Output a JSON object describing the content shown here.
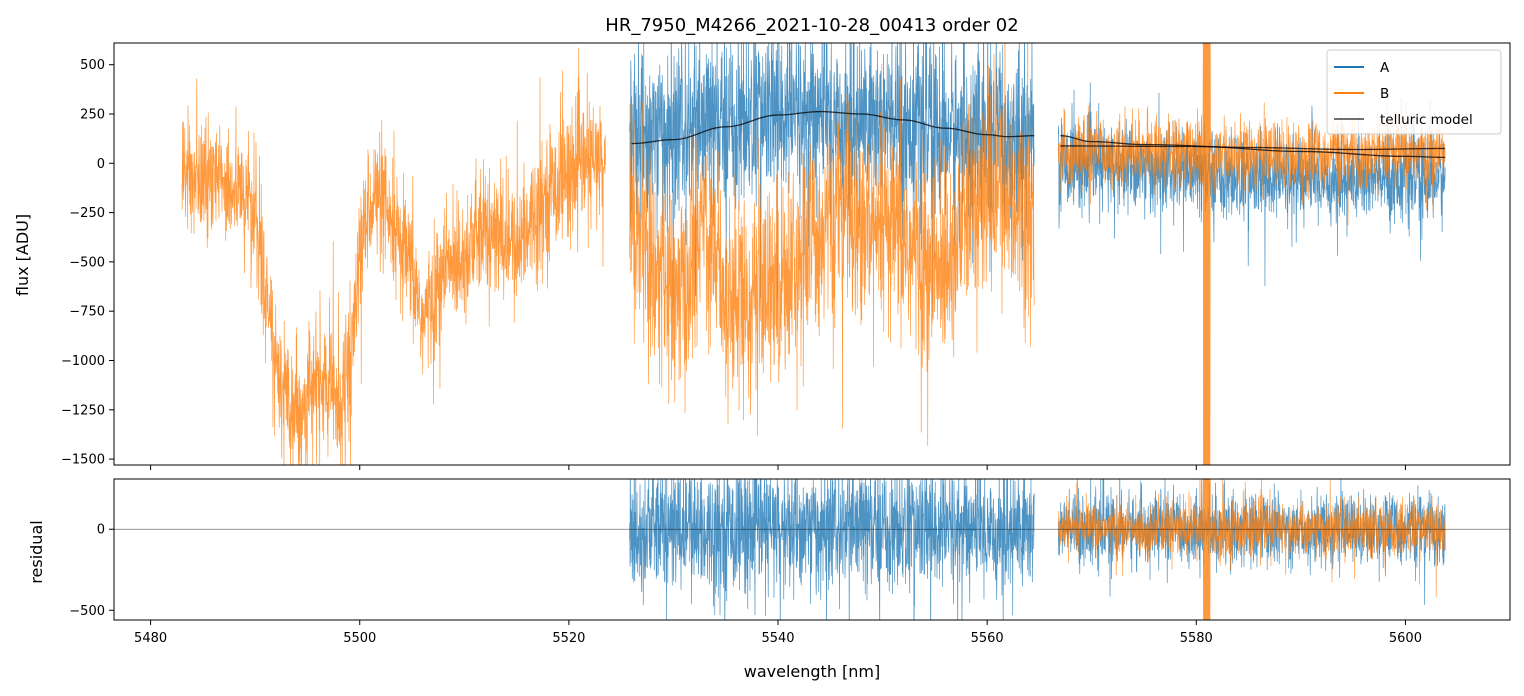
{
  "chart_data": {
    "type": "line",
    "title": "HR_7950_M4266_2021-10-28_00413  order 02",
    "colors": {
      "A": "#1f77b4",
      "B": "#ff7f0e",
      "model": "#000000"
    },
    "top_panel": {
      "ylabel": "flux [ADU]",
      "ylim": [
        -1530,
        610
      ],
      "yticks": [
        500,
        250,
        0,
        -250,
        -500,
        -750,
        -1000,
        -1250,
        -1500
      ],
      "ytick_labels": [
        "500",
        "250",
        "0",
        "−250",
        "−500",
        "−750",
        "−1000",
        "−1250",
        "−1500"
      ],
      "legend": {
        "placement": "top-right",
        "entries": [
          "A",
          "B",
          "telluric model"
        ]
      },
      "series": [
        {
          "name": "B",
          "segment": "left",
          "xrange": [
            5483,
            5523.5
          ],
          "noise_sd": 160,
          "envelope": [
            [
              5483,
              -50
            ],
            [
              5485,
              -80
            ],
            [
              5487,
              -100
            ],
            [
              5489,
              -160
            ],
            [
              5490,
              -250
            ],
            [
              5491,
              -650
            ],
            [
              5492,
              -1000
            ],
            [
              5493,
              -1150
            ],
            [
              5494,
              -1250
            ],
            [
              5495,
              -1200
            ],
            [
              5496,
              -1100
            ],
            [
              5497,
              -1150
            ],
            [
              5498,
              -1200
            ],
            [
              5499,
              -1050
            ],
            [
              5500,
              -500
            ],
            [
              5501,
              -150
            ],
            [
              5502,
              -200
            ],
            [
              5503,
              -350
            ],
            [
              5504,
              -450
            ],
            [
              5505,
              -550
            ],
            [
              5506,
              -800
            ],
            [
              5507,
              -700
            ],
            [
              5508,
              -550
            ],
            [
              5509,
              -500
            ],
            [
              5510,
              -450
            ],
            [
              5512,
              -350
            ],
            [
              5514,
              -400
            ],
            [
              5515,
              -450
            ],
            [
              5516,
              -300
            ],
            [
              5518,
              -150
            ],
            [
              5520,
              -50
            ],
            [
              5522,
              0
            ],
            [
              5523.5,
              0
            ]
          ]
        },
        {
          "name": "A",
          "segment": "mid",
          "xrange": [
            5525.8,
            5564.5
          ],
          "noise_sd": 230,
          "envelope": [
            [
              5525.8,
              150
            ],
            [
              5531,
              150
            ],
            [
              5540,
              260
            ],
            [
              5548,
              230
            ],
            [
              5556,
              150
            ],
            [
              5564.5,
              140
            ]
          ]
        },
        {
          "name": "B",
          "segment": "mid",
          "xrange": [
            5525.8,
            5564.5
          ],
          "noise_sd": 260,
          "envelope": [
            [
              5525.8,
              -200
            ],
            [
              5527,
              -400
            ],
            [
              5529,
              -600
            ],
            [
              5531,
              -700
            ],
            [
              5533,
              -250
            ],
            [
              5535,
              -650
            ],
            [
              5537,
              -700
            ],
            [
              5539,
              -650
            ],
            [
              5541,
              -550
            ],
            [
              5543,
              -400
            ],
            [
              5545,
              -300
            ],
            [
              5547,
              -200
            ],
            [
              5549,
              -400
            ],
            [
              5551,
              -350
            ],
            [
              5553,
              -450
            ],
            [
              5555,
              -600
            ],
            [
              5557,
              -350
            ],
            [
              5559,
              -200
            ],
            [
              5561,
              -150
            ],
            [
              5563,
              -200
            ],
            [
              5564.5,
              -250
            ]
          ]
        },
        {
          "name": "A",
          "segment": "right",
          "xrange": [
            5566.8,
            5603.8
          ],
          "noise_sd": 110,
          "envelope": [
            [
              5566.8,
              0
            ],
            [
              5575,
              -30
            ],
            [
              5585,
              -80
            ],
            [
              5595,
              -80
            ],
            [
              5603.8,
              -80
            ]
          ]
        },
        {
          "name": "B",
          "segment": "right",
          "xrange": [
            5566.8,
            5603.8
          ],
          "noise_sd": 85,
          "envelope": [
            [
              5566.8,
              50
            ],
            [
              5580,
              60
            ],
            [
              5590,
              40
            ],
            [
              5603.8,
              50
            ]
          ],
          "spike": {
            "x": 5581,
            "low": -1530,
            "high": 610
          }
        },
        {
          "name": "telluric model",
          "segment": "mid-curve",
          "points": [
            [
              5526,
              100
            ],
            [
              5530,
              120
            ],
            [
              5535,
              185
            ],
            [
              5540,
              245
            ],
            [
              5544,
              262
            ],
            [
              5548,
              250
            ],
            [
              5552,
              220
            ],
            [
              5556,
              178
            ],
            [
              5560,
              145
            ],
            [
              5562,
              135
            ],
            [
              5564.5,
              140
            ]
          ]
        },
        {
          "name": "telluric model",
          "segment": "right-curve-1",
          "points": [
            [
              5567,
              140
            ],
            [
              5570,
              110
            ],
            [
              5575,
              95
            ],
            [
              5585,
              80
            ],
            [
              5595,
              70
            ],
            [
              5603.8,
              75
            ]
          ]
        },
        {
          "name": "telluric model",
          "segment": "right-curve-2",
          "points": [
            [
              5567,
              88
            ],
            [
              5580,
              85
            ],
            [
              5590,
              60
            ],
            [
              5600,
              35
            ],
            [
              5603.8,
              30
            ]
          ]
        }
      ]
    },
    "bottom_panel": {
      "ylabel": "residual",
      "ylim": [
        -560,
        310
      ],
      "yticks": [
        0,
        -500
      ],
      "ytick_labels": [
        "0",
        "−500"
      ],
      "zero_line": 0,
      "series": [
        {
          "name": "A",
          "xrange": [
            5525.8,
            5564.5
          ],
          "noise_sd": 200
        },
        {
          "name": "A",
          "xrange": [
            5566.8,
            5603.8
          ],
          "noise_sd": 110
        },
        {
          "name": "B",
          "xrange": [
            5566.8,
            5603.8
          ],
          "noise_sd": 85,
          "spike": {
            "x": 5581,
            "low": -560,
            "high": 310
          }
        }
      ]
    },
    "xlabel": "wavelength [nm]",
    "xlim": [
      5476.5,
      5610
    ],
    "xticks": [
      5480,
      5500,
      5520,
      5540,
      5560,
      5580,
      5600
    ],
    "xtick_labels": [
      "5480",
      "5500",
      "5520",
      "5540",
      "5560",
      "5580",
      "5600"
    ]
  }
}
